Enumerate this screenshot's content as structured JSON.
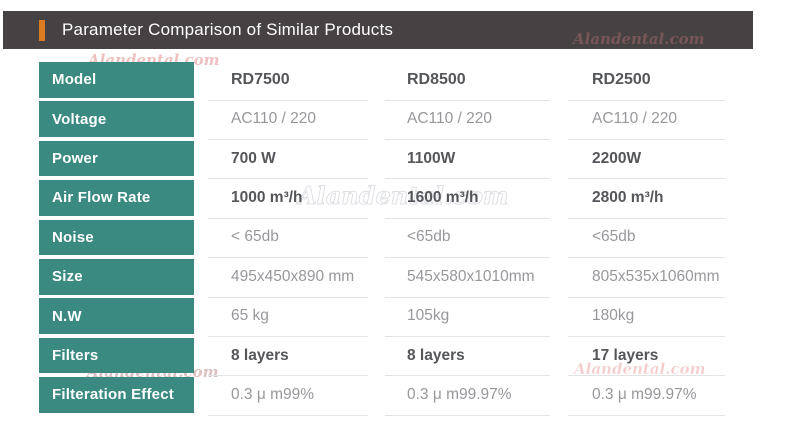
{
  "header": {
    "title": "Parameter Comparison of Similar Products"
  },
  "watermark": {
    "text": "Alandental.com"
  },
  "table": {
    "rows": [
      {
        "label": "Model",
        "values": [
          "RD7500",
          "RD8500",
          "RD2500"
        ]
      },
      {
        "label": "Voltage",
        "values": [
          "AC110 / 220",
          "AC110 / 220",
          "AC110 / 220"
        ]
      },
      {
        "label": "Power",
        "values": [
          "700 W",
          "1100W",
          "2200W"
        ]
      },
      {
        "label": "Air Flow Rate",
        "values": [
          "1000 m³/h",
          "1600 m³/h",
          "2800 m³/h"
        ]
      },
      {
        "label": "Noise",
        "values": [
          "< 65db",
          "<65db",
          "<65db"
        ]
      },
      {
        "label": "Size",
        "values": [
          "495x450x890 mm",
          "545x580x1010mm",
          "805x535x1060mm"
        ]
      },
      {
        "label": "N.W",
        "values": [
          "65 kg",
          "105kg",
          "180kg"
        ]
      },
      {
        "label": "Filters",
        "values": [
          "8 layers",
          "8 layers",
          "17 layers"
        ]
      },
      {
        "label": "Filteration Effect",
        "values": [
          "0.3 μ m99%",
          "0.3 μ m99.97%",
          "0.3 μ m99.97%"
        ]
      }
    ]
  },
  "colors": {
    "header_bar": "#464243",
    "accent_orange": "#DE7A1F",
    "teal": "#3A8A82",
    "value_gray": "#98989C",
    "value_dark": "#55565A"
  }
}
